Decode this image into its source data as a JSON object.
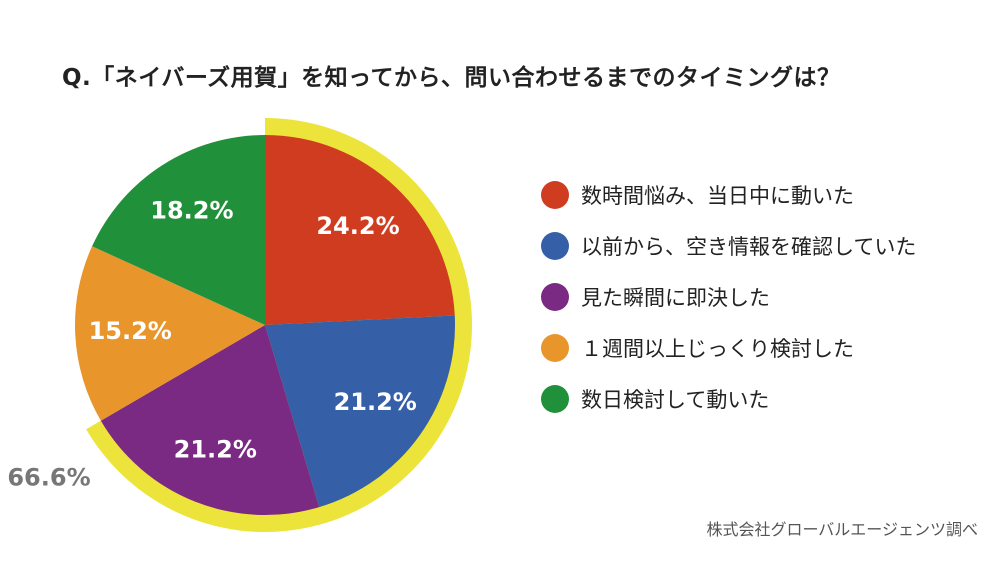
{
  "title": "Q.「ネイバーズ用賀」を知ってから、問い合わせるまでのタイミングは？",
  "source": "株式会社グローバルエージェンツ調べ",
  "chart_data": {
    "type": "pie",
    "categories": [
      "数時間悩み、当日中に動いた",
      "以前から、空き情報を確認していた",
      "見た瞬間に即決した",
      "１週間以上じっくり検討した",
      "数日検討して動いた"
    ],
    "values": [
      24.2,
      21.2,
      21.2,
      15.2,
      18.2
    ],
    "value_labels": [
      "24.2%",
      "21.2%",
      "21.2%",
      "15.2%",
      "18.2%"
    ],
    "colors": [
      "#d03c20",
      "#3560a8",
      "#7b2a83",
      "#e8952b",
      "#20903a"
    ],
    "highlight": {
      "label": "66.6%",
      "color": "#ece43a",
      "slices": [
        0,
        1,
        2
      ]
    },
    "legend": "right",
    "start_angle_deg": 0,
    "direction": "clockwise"
  }
}
